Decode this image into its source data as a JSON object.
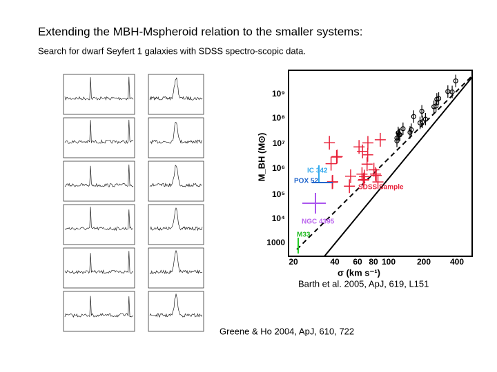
{
  "header": {
    "title": "Extending the MBH-Mspheroid relation to the smaller systems:",
    "subtitle": "Search for dwarf Seyfert 1 galaxies with SDSS spectro-scopic data."
  },
  "figure_right": {
    "y_label": "M_BH  (M⊙)",
    "x_label": "σ  (km s⁻¹)",
    "y_ticks": [
      "10⁹",
      "10⁸",
      "10⁷",
      "10⁶",
      "10⁵",
      "10⁴",
      "1000"
    ],
    "x_ticks": [
      "20",
      "40",
      "60",
      "80",
      "100",
      "200",
      "400"
    ],
    "annotations": [
      "IC 342",
      "POX 52",
      "SDSS Sample",
      "NGC 4395",
      "M33"
    ]
  },
  "captions": [
    "Barth et al. 2005, ApJ, 619, L151",
    "Greene & Ho 2004, ApJ, 610, 722"
  ]
}
